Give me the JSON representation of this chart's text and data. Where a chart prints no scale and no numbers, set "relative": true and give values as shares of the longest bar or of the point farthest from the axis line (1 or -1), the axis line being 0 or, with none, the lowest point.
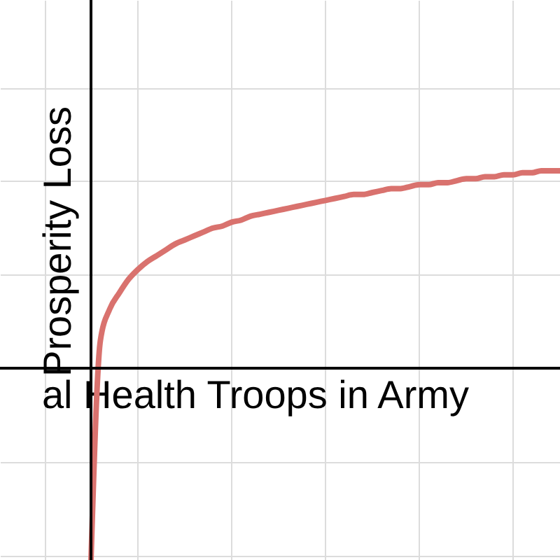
{
  "chart_data": {
    "type": "line",
    "relative": true,
    "xlabel": "al Health Troops in Army",
    "ylabel": "Prosperity Loss",
    "grid": true,
    "categories": [
      null,
      null,
      null,
      null,
      null,
      null,
      null,
      null,
      null,
      null,
      null,
      null,
      null,
      null,
      null,
      null,
      null,
      null,
      null,
      null,
      null,
      null,
      null,
      null,
      null,
      null,
      null,
      null,
      null,
      null,
      null,
      null,
      null,
      null,
      null,
      null,
      null,
      null,
      null,
      null,
      null,
      null,
      null,
      null,
      null,
      null,
      null,
      null,
      null,
      null,
      null
    ],
    "series": [
      {
        "color": "#d9726e",
        "values": [
          -0.97,
          0.14,
          0.3,
          0.38,
          0.45,
          0.5,
          0.54,
          0.57,
          0.6,
          0.63,
          0.65,
          0.67,
          0.69,
          0.71,
          0.72,
          0.74,
          0.75,
          0.77,
          0.78,
          0.79,
          0.8,
          0.81,
          0.82,
          0.83,
          0.84,
          0.85,
          0.86,
          0.87,
          0.88,
          0.88,
          0.89,
          0.9,
          0.91,
          0.91,
          0.92,
          0.93,
          0.93,
          0.94,
          0.94,
          0.95,
          0.96,
          0.96,
          0.97,
          0.97,
          0.98,
          0.98,
          0.99,
          0.99,
          1.0,
          1.0,
          1.0
        ]
      }
    ]
  }
}
